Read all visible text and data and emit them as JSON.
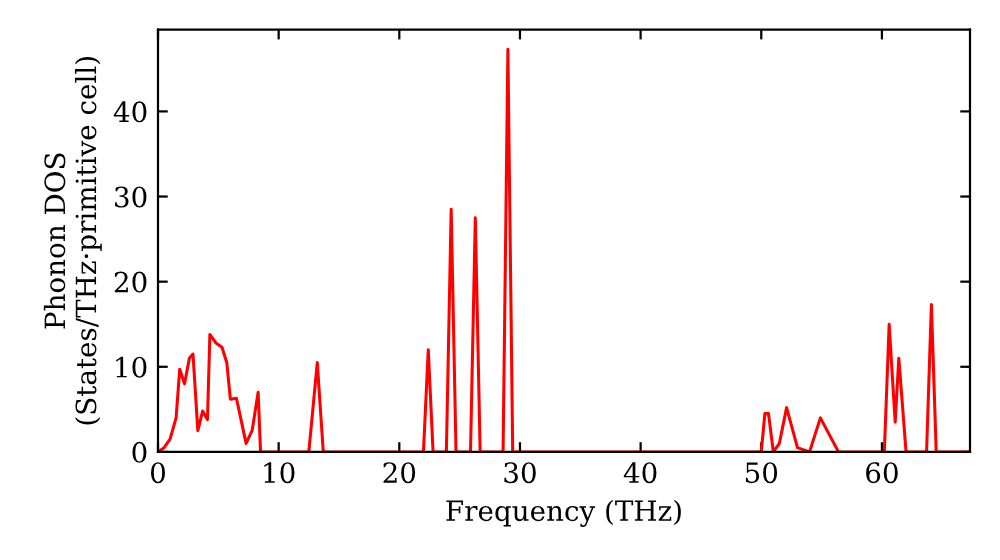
{
  "chart_data": {
    "type": "line",
    "xlabel": "Frequency (THz)",
    "ylabel": "Phonon DOS\n(States/THz·primitive cell)",
    "xlim": [
      0,
      67.3
    ],
    "ylim": [
      0,
      49.6
    ],
    "xticks": [
      0,
      10,
      20,
      30,
      40,
      50,
      60
    ],
    "yticks": [
      0,
      10,
      20,
      30,
      40
    ],
    "grid": false,
    "legend": false,
    "marker": "none",
    "line_style": "solid",
    "series": [
      {
        "color": "#ff0000",
        "x": [
          0,
          0.5,
          1,
          1.5,
          1.8,
          2.2,
          2.6,
          2.9,
          3.3,
          3.7,
          4.1,
          4.3,
          4.8,
          5.3,
          5.7,
          6.0,
          6.5,
          7.0,
          7.3,
          7.8,
          8.3,
          8.5,
          12.5,
          13.2,
          13.7,
          22.0,
          22.4,
          22.8,
          23.9,
          24.3,
          24.7,
          25.9,
          26.3,
          26.7,
          28.6,
          29.0,
          29.4,
          50.0,
          50.3,
          50.6,
          51.0,
          51.5,
          52.1,
          53.0,
          54.0,
          54.9,
          56.4,
          60.2,
          60.6,
          61.1,
          61.4,
          62.0,
          63.7,
          64.1,
          64.5,
          67.3
        ],
        "values": [
          0,
          0.5,
          1.5,
          4,
          9.7,
          8,
          11,
          11.5,
          2.5,
          4.8,
          3.8,
          13.8,
          12.8,
          12.3,
          10.5,
          6.2,
          6.3,
          3,
          1,
          2.5,
          7,
          0,
          0,
          10.5,
          0,
          0,
          12,
          0,
          0,
          28.5,
          0,
          0,
          27.5,
          0,
          0,
          47.3,
          0,
          0,
          4.5,
          4.5,
          0,
          1,
          5.2,
          0.5,
          0,
          4,
          0,
          0,
          15,
          3.5,
          11,
          0,
          0,
          17.3,
          0,
          0
        ]
      }
    ]
  }
}
